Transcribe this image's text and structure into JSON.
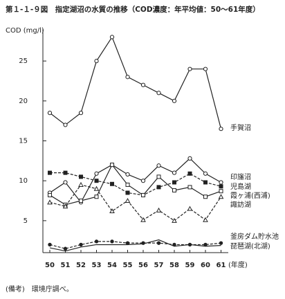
{
  "chart_data": {
    "type": "line",
    "title": "第１-１-９図　指定湖沼の水質の推移（COD濃度：年平均値：50～61年度）",
    "y_label": "COD (mg/l)",
    "x_label": "(年度)",
    "note": "(備考)　環境庁調べ。",
    "categories": [
      "50",
      "51",
      "52",
      "53",
      "54",
      "55",
      "56",
      "57",
      "58",
      "59",
      "60",
      "61"
    ],
    "ylim": [
      1,
      29
    ],
    "yticks": [
      5,
      10,
      15,
      20,
      25
    ],
    "series": [
      {
        "name": "手賀沼",
        "color": "#222",
        "marker": "circle-open",
        "dashed": false,
        "values": [
          18.5,
          17,
          18.5,
          25,
          28,
          23,
          22,
          21,
          20,
          24,
          24,
          16.5
        ]
      },
      {
        "name": "印旛沼",
        "color": "#222",
        "marker": "circle-open",
        "dashed": false,
        "values": [
          8.5,
          9.8,
          7.3,
          10.9,
          12,
          10.8,
          10,
          11.9,
          11,
          12.8,
          10.9,
          9.8
        ]
      },
      {
        "name": "児島湖",
        "color": "#222",
        "marker": "square-filled",
        "dashed": true,
        "values": [
          11,
          11,
          10.5,
          10,
          9.6,
          8.5,
          8.2,
          9.2,
          9.8,
          10.9,
          9.8,
          9.3
        ]
      },
      {
        "name": "霞ヶ浦(西浦)",
        "color": "#222",
        "marker": "square-open",
        "dashed": false,
        "values": [
          8.2,
          7,
          7.5,
          8,
          12,
          9.5,
          8.2,
          10.5,
          8.8,
          9.2,
          8,
          8.7
        ]
      },
      {
        "name": "諏訪湖",
        "color": "#222",
        "marker": "triangle-open",
        "dashed": true,
        "values": [
          7.3,
          6.8,
          9.5,
          9,
          6.2,
          7.5,
          5.1,
          6.3,
          5,
          6.5,
          5.1,
          8
        ]
      },
      {
        "name": "釜房ダム貯水池",
        "color": "#222",
        "marker": "circle-filled",
        "dashed": true,
        "values": [
          2,
          1.5,
          2,
          2.4,
          2.4,
          2.2,
          2.2,
          2.2,
          2,
          2,
          2,
          2.2
        ]
      },
      {
        "name": "琵琶湖(北湖)",
        "color": "#222",
        "marker": "none",
        "dashed": false,
        "values": [
          1.6,
          1.2,
          1.7,
          2,
          2,
          2,
          2.1,
          2.6,
          1.8,
          2,
          1.8,
          1.9
        ]
      }
    ]
  }
}
